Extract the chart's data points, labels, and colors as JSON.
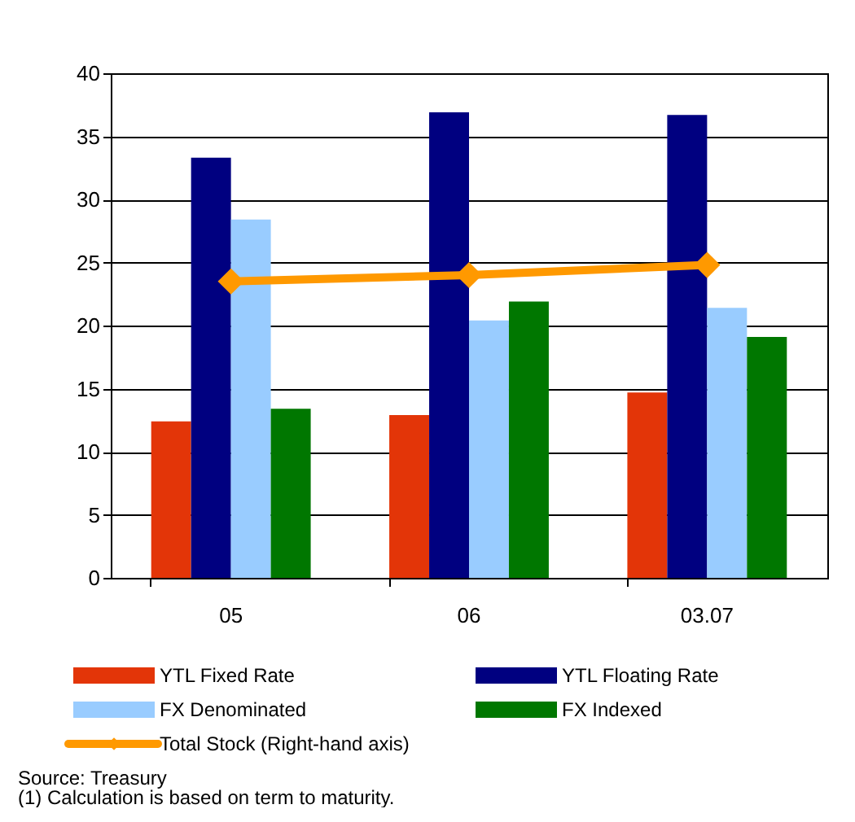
{
  "chart_data": {
    "type": "bar",
    "categories": [
      "05",
      "06",
      "03.07"
    ],
    "series": [
      {
        "name": "YTL Fixed Rate",
        "color": "#e33508",
        "values": [
          12.4,
          12.9,
          14.7
        ]
      },
      {
        "name": "YTL Floating Rate",
        "color": "#000080",
        "values": [
          33.3,
          36.9,
          36.7
        ]
      },
      {
        "name": "FX Denominated",
        "color": "#99ccff",
        "values": [
          28.4,
          20.4,
          21.4
        ]
      },
      {
        "name": "FX Indexed",
        "color": "#007700",
        "values": [
          13.4,
          21.9,
          19.1
        ]
      },
      {
        "name": "Total Stock (Right-hand axis)",
        "color": "#ff9900",
        "type": "line",
        "marker": "diamond",
        "values": [
          23.5,
          24.0,
          24.8
        ]
      }
    ],
    "ylim": [
      0,
      40
    ],
    "yticks": [
      0,
      5,
      10,
      15,
      20,
      25,
      30,
      35,
      40
    ],
    "grid": "y",
    "legend": "bottom",
    "annotations": [
      "Source: Treasury",
      "(1) Calculation is based on term to maturity."
    ]
  }
}
